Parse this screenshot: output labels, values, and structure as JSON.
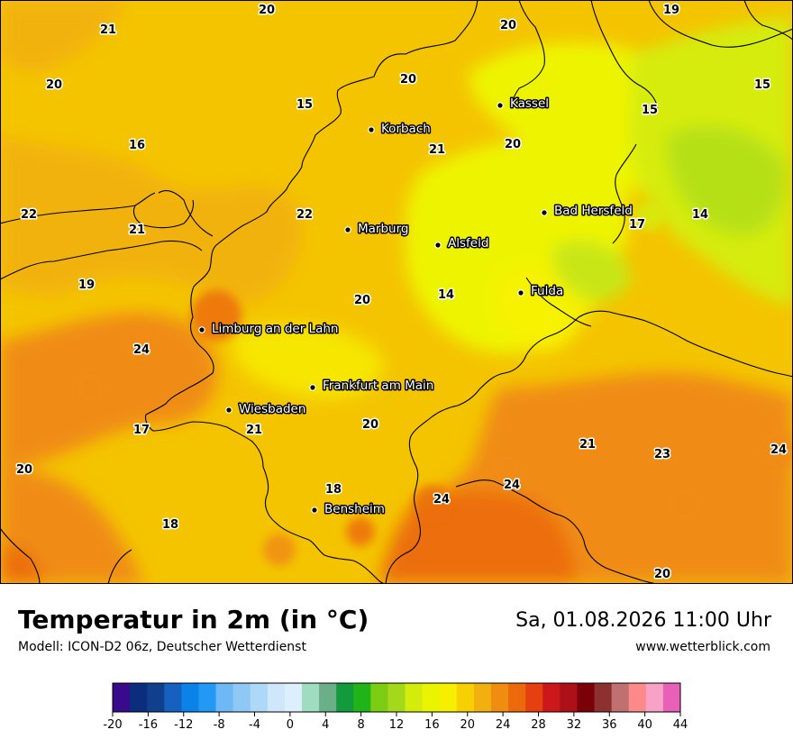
{
  "header": {
    "title": "Temperatur in 2m (in °C)",
    "model": "Modell: ICON-D2 06z, Deutscher Wetterdienst",
    "datetime": "Sa, 01.08.2026 11:00 Uhr",
    "website": "www.wetterblick.com"
  },
  "cities": [
    {
      "name": "Kassel"
    },
    {
      "name": "Korbach"
    },
    {
      "name": "Bad Hersfeld"
    },
    {
      "name": "Marburg"
    },
    {
      "name": "Alsfeld"
    },
    {
      "name": "Fulda"
    },
    {
      "name": "Limburg an der Lahn"
    },
    {
      "name": "Frankfurt am Main"
    },
    {
      "name": "Wiesbaden"
    },
    {
      "name": "Bensheim"
    }
  ],
  "temperatures": [
    "20",
    "19",
    "21",
    "20",
    "20",
    "20",
    "15",
    "15",
    "15",
    "16",
    "21",
    "20",
    "22",
    "22",
    "21",
    "17",
    "14",
    "19",
    "20",
    "14",
    "24",
    "17",
    "21",
    "20",
    "21",
    "23",
    "24",
    "20",
    "18",
    "24",
    "24",
    "18",
    "20"
  ],
  "legend": {
    "ticks": [
      "-20",
      "-16",
      "-12",
      "-8",
      "-4",
      "0",
      "4",
      "8",
      "12",
      "16",
      "20",
      "24",
      "28",
      "32",
      "36",
      "40",
      "44"
    ],
    "colors": [
      "#3a0a8c",
      "#0b2d7e",
      "#103f8c",
      "#1660c0",
      "#0a82e8",
      "#2299f5",
      "#6db8f5",
      "#8fc8f5",
      "#add8f8",
      "#cfe6fb",
      "#ddeefc",
      "#9fdcc0",
      "#6aae8a",
      "#129a3c",
      "#20b418",
      "#7ccc14",
      "#a4d81a",
      "#d4ec0c",
      "#eaf400",
      "#f6f000",
      "#f6d000",
      "#f2b010",
      "#f08c10",
      "#ec6a0c",
      "#e64010",
      "#cc1818",
      "#ae1018",
      "#7c0008",
      "#8c3030",
      "#c07070",
      "#fc8a8a",
      "#f8a2c8",
      "#e860b8"
    ]
  }
}
